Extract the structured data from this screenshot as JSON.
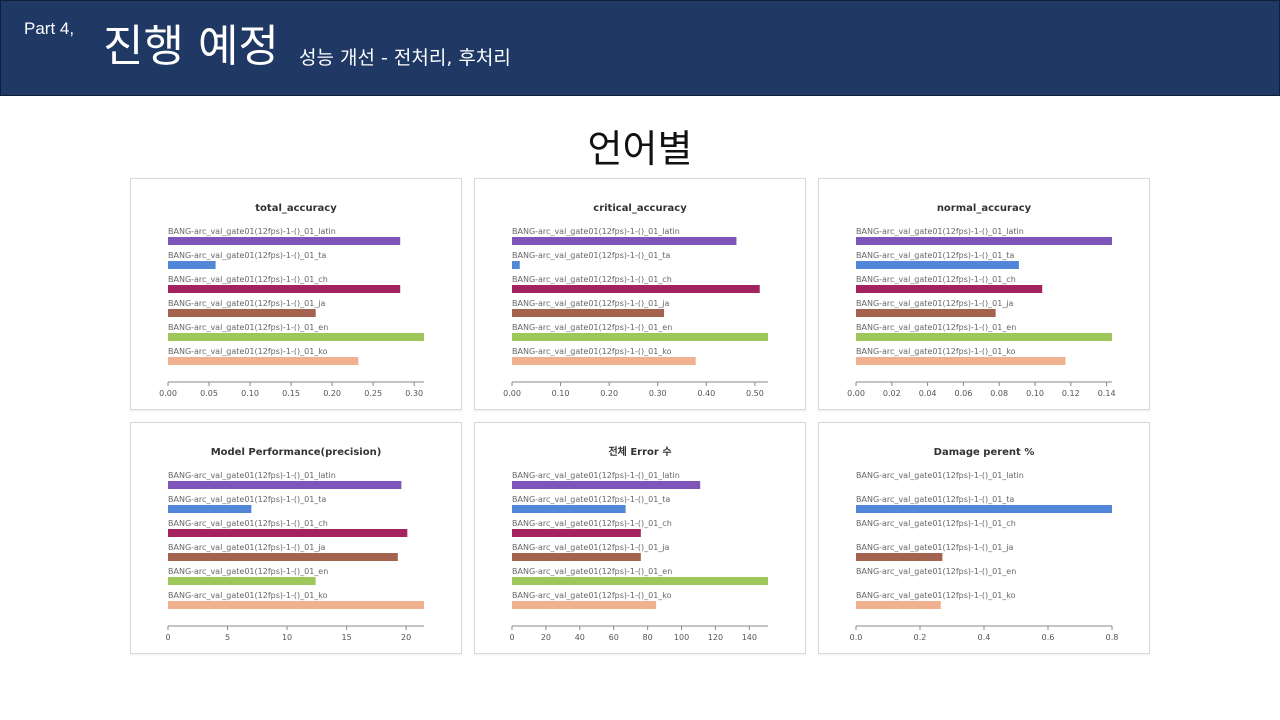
{
  "header": {
    "part": "Part 4,",
    "title": "진행 예정",
    "subtitle": "성능 개선 - 전처리, 후처리"
  },
  "section_title": "언어별",
  "colors": {
    "header_bg": "#1f3864",
    "latin": "#7e55b8",
    "ta": "#5186d9",
    "ch": "#a4235f",
    "ja": "#a3634f",
    "en": "#9dc759",
    "ko": "#f0b191"
  },
  "chart_data": [
    {
      "type": "bar",
      "title": "total_accuracy",
      "categories": [
        "BANG-arc_val_gate01(12fps)-1-()_01_latin",
        "BANG-arc_val_gate01(12fps)-1-()_01_ta",
        "BANG-arc_val_gate01(12fps)-1-()_01_ch",
        "BANG-arc_val_gate01(12fps)-1-()_01_ja",
        "BANG-arc_val_gate01(12fps)-1-()_01_en",
        "BANG-arc_val_gate01(12fps)-1-()_01_ko"
      ],
      "values": [
        0.283,
        0.058,
        0.283,
        0.18,
        0.312,
        0.232
      ],
      "xlim": [
        0,
        0.312
      ],
      "ticks": [
        0,
        0.05,
        0.1,
        0.15,
        0.2,
        0.25,
        0.3
      ],
      "tick_labels": [
        "0.00",
        "0.05",
        "0.10",
        "0.15",
        "0.20",
        "0.25",
        "0.30"
      ]
    },
    {
      "type": "bar",
      "title": "critical_accuracy",
      "categories": [
        "BANG-arc_val_gate01(12fps)-1-()_01_latin",
        "BANG-arc_val_gate01(12fps)-1-()_01_ta",
        "BANG-arc_val_gate01(12fps)-1-()_01_ch",
        "BANG-arc_val_gate01(12fps)-1-()_01_ja",
        "BANG-arc_val_gate01(12fps)-1-()_01_en",
        "BANG-arc_val_gate01(12fps)-1-()_01_ko"
      ],
      "values": [
        0.462,
        0.016,
        0.51,
        0.313,
        0.527,
        0.378
      ],
      "xlim": [
        0,
        0.527
      ],
      "ticks": [
        0,
        0.1,
        0.2,
        0.3,
        0.4,
        0.5
      ],
      "tick_labels": [
        "0.00",
        "0.10",
        "0.20",
        "0.30",
        "0.40",
        "0.50"
      ]
    },
    {
      "type": "bar",
      "title": "normal_accuracy",
      "categories": [
        "BANG-arc_val_gate01(12fps)-1-()_01_latin",
        "BANG-arc_val_gate01(12fps)-1-()_01_ta",
        "BANG-arc_val_gate01(12fps)-1-()_01_ch",
        "BANG-arc_val_gate01(12fps)-1-()_01_ja",
        "BANG-arc_val_gate01(12fps)-1-()_01_en",
        "BANG-arc_val_gate01(12fps)-1-()_01_ko"
      ],
      "values": [
        0.143,
        0.091,
        0.104,
        0.078,
        0.143,
        0.117
      ],
      "xlim": [
        0,
        0.143
      ],
      "ticks": [
        0,
        0.02,
        0.04,
        0.06,
        0.08,
        0.1,
        0.12,
        0.14
      ],
      "tick_labels": [
        "0.00",
        "0.02",
        "0.04",
        "0.06",
        "0.08",
        "0.10",
        "0.12",
        "0.14"
      ]
    },
    {
      "type": "bar",
      "title": "Model Performance(precision)",
      "categories": [
        "BANG-arc_val_gate01(12fps)-1-()_01_latin",
        "BANG-arc_val_gate01(12fps)-1-()_01_ta",
        "BANG-arc_val_gate01(12fps)-1-()_01_ch",
        "BANG-arc_val_gate01(12fps)-1-()_01_ja",
        "BANG-arc_val_gate01(12fps)-1-()_01_en",
        "BANG-arc_val_gate01(12fps)-1-()_01_ko"
      ],
      "values": [
        19.6,
        7.0,
        20.1,
        19.3,
        12.4,
        21.5
      ],
      "xlim": [
        0,
        21.5
      ],
      "ticks": [
        0,
        5,
        10,
        15,
        20
      ],
      "tick_labels": [
        "0",
        "5",
        "10",
        "15",
        "20"
      ]
    },
    {
      "type": "bar",
      "title": "전체 Error 수",
      "categories": [
        "BANG-arc_val_gate01(12fps)-1-()_01_latin",
        "BANG-arc_val_gate01(12fps)-1-()_01_ta",
        "BANG-arc_val_gate01(12fps)-1-()_01_ch",
        "BANG-arc_val_gate01(12fps)-1-()_01_ja",
        "BANG-arc_val_gate01(12fps)-1-()_01_en",
        "BANG-arc_val_gate01(12fps)-1-()_01_ko"
      ],
      "values": [
        111,
        67,
        76,
        76,
        151,
        85
      ],
      "xlim": [
        0,
        151
      ],
      "ticks": [
        0,
        20,
        40,
        60,
        80,
        100,
        120,
        140
      ],
      "tick_labels": [
        "0",
        "20",
        "40",
        "60",
        "80",
        "100",
        "120",
        "140"
      ]
    },
    {
      "type": "bar",
      "title": "Damage perent %",
      "categories": [
        "BANG-arc_val_gate01(12fps)-1-()_01_latin",
        "BANG-arc_val_gate01(12fps)-1-()_01_ta",
        "BANG-arc_val_gate01(12fps)-1-()_01_ch",
        "BANG-arc_val_gate01(12fps)-1-()_01_ja",
        "BANG-arc_val_gate01(12fps)-1-()_01_en",
        "BANG-arc_val_gate01(12fps)-1-()_01_ko"
      ],
      "values": [
        0,
        0.8,
        0,
        0.27,
        0,
        0.265
      ],
      "xlim": [
        0,
        0.8
      ],
      "ticks": [
        0,
        0.2,
        0.4,
        0.6,
        0.8
      ],
      "tick_labels": [
        "0.0",
        "0.2",
        "0.4",
        "0.6",
        "0.8"
      ]
    }
  ]
}
